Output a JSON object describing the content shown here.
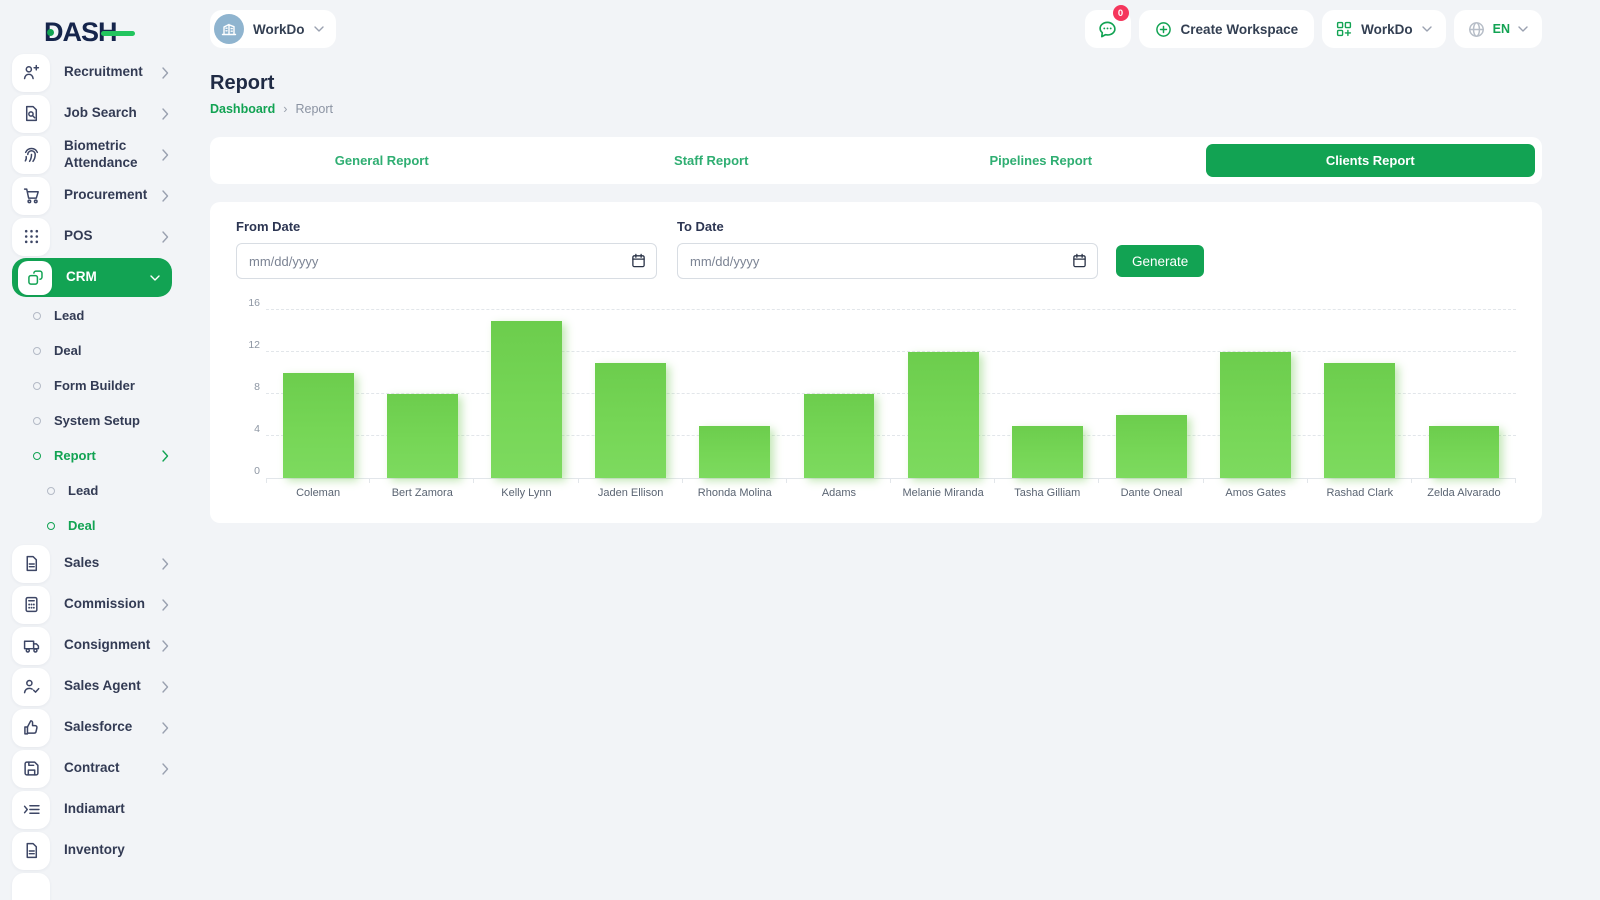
{
  "brand": {
    "logo_text": "DASH"
  },
  "topbar": {
    "workspace": {
      "label": "WorkDo",
      "icon": "building-icon"
    },
    "messenger": {
      "icon": "chat-bubble-icon",
      "badge": "0"
    },
    "create_workspace": {
      "label": "Create Workspace",
      "icon": "plus-circle-icon"
    },
    "app_menu": {
      "label": "WorkDo",
      "icon": "grid-plus-icon"
    },
    "language": {
      "label": "EN",
      "icon": "globe-icon"
    }
  },
  "page": {
    "title": "Report",
    "breadcrumb": [
      "Dashboard",
      "Report"
    ],
    "breadcrumb_separator": "›"
  },
  "tabs": [
    {
      "label": "General Report",
      "active": false
    },
    {
      "label": "Staff Report",
      "active": false
    },
    {
      "label": "Pipelines Report",
      "active": false
    },
    {
      "label": "Clients Report",
      "active": true
    }
  ],
  "filter": {
    "from_date_label": "From Date",
    "to_date_label": "To Date",
    "date_placeholder": "mm/dd/yyyy",
    "generate_label": "Generate"
  },
  "sidebar": {
    "items": [
      {
        "label": "Recruitment",
        "icon": "user-plus",
        "type": "main",
        "chevron": "right",
        "active": false
      },
      {
        "label": "Job Search",
        "icon": "file-search",
        "type": "main",
        "chevron": "right",
        "active": false
      },
      {
        "label": "Biometric Attendance",
        "icon": "fingerprint",
        "type": "main",
        "chevron": "right",
        "active": false
      },
      {
        "label": "Procurement",
        "icon": "cart",
        "type": "main",
        "chevron": "right",
        "active": false
      },
      {
        "label": "POS",
        "icon": "grid-dots",
        "type": "main",
        "chevron": "right",
        "active": false
      },
      {
        "label": "CRM",
        "icon": "boxes",
        "type": "main",
        "chevron": "down",
        "active": true
      },
      {
        "label": "Lead",
        "icon": "bullet",
        "type": "sub",
        "chevron": null,
        "active": false
      },
      {
        "label": "Deal",
        "icon": "bullet",
        "type": "sub",
        "chevron": null,
        "active": false
      },
      {
        "label": "Form Builder",
        "icon": "bullet",
        "type": "sub",
        "chevron": null,
        "active": false
      },
      {
        "label": "System Setup",
        "icon": "bullet",
        "type": "sub",
        "chevron": null,
        "active": false
      },
      {
        "label": "Report",
        "icon": "bullet",
        "type": "sub",
        "chevron": "right",
        "active": true
      },
      {
        "label": "Lead",
        "icon": "bullet",
        "type": "subsub",
        "chevron": null,
        "active": false
      },
      {
        "label": "Deal",
        "icon": "bullet",
        "type": "subsub",
        "chevron": null,
        "active": true
      },
      {
        "label": "Sales",
        "icon": "file",
        "type": "main",
        "chevron": "right",
        "active": false
      },
      {
        "label": "Commission",
        "icon": "calculator",
        "type": "main",
        "chevron": "right",
        "active": false
      },
      {
        "label": "Consignment",
        "icon": "truck",
        "type": "main",
        "chevron": "right",
        "active": false
      },
      {
        "label": "Sales Agent",
        "icon": "user-check",
        "type": "main",
        "chevron": "right",
        "active": false
      },
      {
        "label": "Salesforce",
        "icon": "thumbs-up",
        "type": "main",
        "chevron": "right",
        "active": false
      },
      {
        "label": "Contract",
        "icon": "save",
        "type": "main",
        "chevron": "right",
        "active": false
      },
      {
        "label": "Indiamart",
        "icon": "list-in",
        "type": "main",
        "chevron": null,
        "active": false
      },
      {
        "label": "Inventory",
        "icon": "file",
        "type": "main",
        "chevron": null,
        "active": false
      },
      {
        "label": "",
        "icon": "blank",
        "type": "main",
        "chevron": null,
        "active": false
      }
    ]
  },
  "chart_data": {
    "type": "bar",
    "categories": [
      "Coleman",
      "Bert Zamora",
      "Kelly Lynn",
      "Jaden Ellison",
      "Rhonda Molina",
      "Adams",
      "Melanie Miranda",
      "Tasha Gilliam",
      "Dante Oneal",
      "Amos Gates",
      "Rashad Clark",
      "Zelda Alvarado"
    ],
    "values": [
      10,
      8,
      15,
      11,
      5,
      8,
      12,
      5,
      6,
      12,
      11,
      5
    ],
    "title": "",
    "xlabel": "",
    "ylabel": "",
    "ylim": [
      0,
      16
    ],
    "yticks": [
      0,
      4,
      8,
      12,
      16
    ],
    "grid": "dashed-horizontal",
    "legend": "none",
    "bar_color": "#73d455"
  },
  "colors": {
    "primary_green": "#12a353",
    "link_green": "#2fae72",
    "bar_green": "#73d455",
    "badge_red": "#f5365c",
    "navy_text": "#333b54"
  }
}
